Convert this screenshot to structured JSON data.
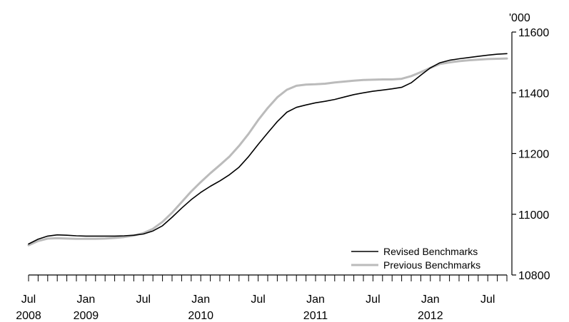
{
  "chart_data": {
    "type": "line",
    "unit_label": "'000",
    "y_axis_side": "right",
    "ylim": [
      10800,
      11600
    ],
    "y_ticks": [
      10800,
      11000,
      11200,
      11400,
      11600
    ],
    "x_start": "2008-07",
    "x_end": "2012-09",
    "x_tick_labels": [
      {
        "date": "2008-07",
        "month": "Jul",
        "year": "2008"
      },
      {
        "date": "2009-01",
        "month": "Jan",
        "year": "2009"
      },
      {
        "date": "2009-07",
        "month": "Jul",
        "year": ""
      },
      {
        "date": "2010-01",
        "month": "Jan",
        "year": "2010"
      },
      {
        "date": "2010-07",
        "month": "Jul",
        "year": ""
      },
      {
        "date": "2011-01",
        "month": "Jan",
        "year": "2011"
      },
      {
        "date": "2011-07",
        "month": "Jul",
        "year": ""
      },
      {
        "date": "2012-01",
        "month": "Jan",
        "year": "2012"
      },
      {
        "date": "2012-07",
        "month": "Jul",
        "year": ""
      }
    ],
    "grid": false,
    "legend_position": "bottom-right",
    "x": [
      "2008-07",
      "2008-08",
      "2008-09",
      "2008-10",
      "2008-11",
      "2008-12",
      "2009-01",
      "2009-02",
      "2009-03",
      "2009-04",
      "2009-05",
      "2009-06",
      "2009-07",
      "2009-08",
      "2009-09",
      "2009-10",
      "2009-11",
      "2009-12",
      "2010-01",
      "2010-02",
      "2010-03",
      "2010-04",
      "2010-05",
      "2010-06",
      "2010-07",
      "2010-08",
      "2010-09",
      "2010-10",
      "2010-11",
      "2010-12",
      "2011-01",
      "2011-02",
      "2011-03",
      "2011-04",
      "2011-05",
      "2011-06",
      "2011-07",
      "2011-08",
      "2011-09",
      "2011-10",
      "2011-11",
      "2011-12",
      "2012-01",
      "2012-02",
      "2012-03",
      "2012-04",
      "2012-05",
      "2012-06",
      "2012-07",
      "2012-08",
      "2012-09"
    ],
    "series": [
      {
        "name": "Revised Benchmarks",
        "color": "#000000",
        "values": [
          10902,
          10918,
          10928,
          10932,
          10931,
          10929,
          10928,
          10928,
          10928,
          10928,
          10929,
          10931,
          10935,
          10945,
          10962,
          10990,
          11020,
          11048,
          11072,
          11092,
          11110,
          11130,
          11155,
          11190,
          11230,
          11268,
          11305,
          11336,
          11352,
          11360,
          11367,
          11372,
          11378,
          11386,
          11394,
          11400,
          11405,
          11409,
          11413,
          11418,
          11433,
          11458,
          11482,
          11499,
          11507,
          11512,
          11516,
          11520,
          11524,
          11527,
          11529
        ]
      },
      {
        "name": "Previous Benchmarks",
        "color": "#bbbbbb",
        "values": [
          10898,
          10912,
          10920,
          10921,
          10920,
          10919,
          10919,
          10919,
          10920,
          10922,
          10925,
          10930,
          10938,
          10952,
          10975,
          11005,
          11040,
          11075,
          11106,
          11135,
          11162,
          11190,
          11225,
          11265,
          11310,
          11350,
          11385,
          11410,
          11423,
          11427,
          11428,
          11430,
          11434,
          11437,
          11440,
          11442,
          11443,
          11444,
          11444,
          11446,
          11455,
          11468,
          11482,
          11495,
          11500,
          11504,
          11507,
          11509,
          11511,
          11512,
          11513
        ]
      }
    ]
  }
}
